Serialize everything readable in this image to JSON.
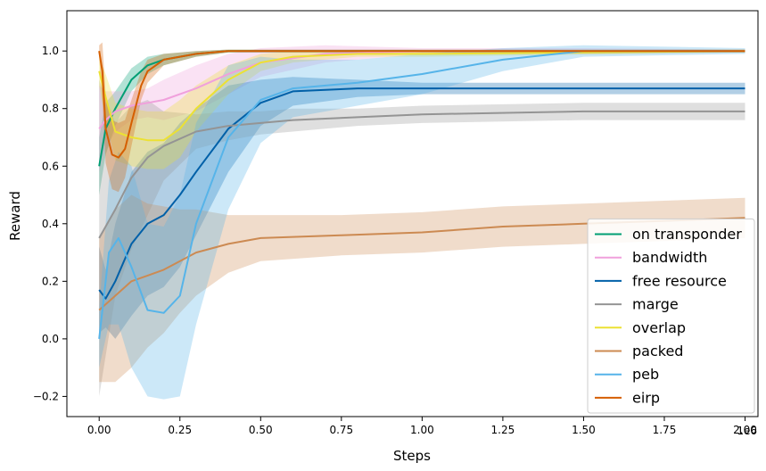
{
  "chart_data": {
    "type": "line",
    "title": "",
    "xlabel": "Steps",
    "ylabel": "Reward",
    "x_offset_label": "1e6",
    "xlim": [
      -0.1,
      2.04
    ],
    "ylim": [
      -0.27,
      1.14
    ],
    "x_ticks": [
      0.0,
      0.25,
      0.5,
      0.75,
      1.0,
      1.25,
      1.5,
      1.75,
      2.0
    ],
    "x_tick_labels": [
      "0.00",
      "0.25",
      "0.50",
      "0.75",
      "1.00",
      "1.25",
      "1.50",
      "1.75",
      "2.00"
    ],
    "y_ticks": [
      -0.2,
      0.0,
      0.2,
      0.4,
      0.6,
      0.8,
      1.0
    ],
    "y_tick_labels": [
      "−0.2",
      "0.0",
      "0.2",
      "0.4",
      "0.6",
      "0.8",
      "1.0"
    ],
    "grid": false,
    "legend_position": "lower-right",
    "series": [
      {
        "name": "on transponder",
        "color": "#009E73",
        "x": [
          0,
          0.02,
          0.05,
          0.1,
          0.15,
          0.2,
          0.3,
          0.4,
          0.6,
          1.0,
          2.0
        ],
        "y": [
          0.6,
          0.73,
          0.8,
          0.9,
          0.95,
          0.97,
          0.99,
          1.0,
          1.0,
          1.0,
          1.0
        ],
        "band": [
          0.1,
          0.09,
          0.06,
          0.04,
          0.03,
          0.02,
          0.01,
          0.005,
          0.005,
          0.005,
          0.005
        ]
      },
      {
        "name": "bandwidth",
        "color": "#F0A0DC",
        "x": [
          0,
          0.02,
          0.05,
          0.1,
          0.15,
          0.2,
          0.3,
          0.4,
          0.5,
          0.7,
          1.0,
          1.5,
          2.0
        ],
        "y": [
          0.73,
          0.76,
          0.79,
          0.81,
          0.82,
          0.83,
          0.87,
          0.92,
          0.96,
          0.99,
          1.0,
          1.0,
          1.0
        ],
        "band": [
          0.15,
          0.1,
          0.07,
          0.05,
          0.05,
          0.07,
          0.08,
          0.07,
          0.05,
          0.03,
          0.01,
          0.01,
          0.005
        ]
      },
      {
        "name": "free resource",
        "color": "#0060A8",
        "x": [
          0,
          0.02,
          0.05,
          0.1,
          0.15,
          0.2,
          0.25,
          0.3,
          0.4,
          0.5,
          0.6,
          0.8,
          1.0,
          1.5,
          2.0
        ],
        "y": [
          0.17,
          0.14,
          0.2,
          0.33,
          0.4,
          0.43,
          0.5,
          0.58,
          0.73,
          0.82,
          0.86,
          0.87,
          0.87,
          0.87,
          0.87
        ],
        "band": [
          0.15,
          0.1,
          0.2,
          0.25,
          0.25,
          0.25,
          0.25,
          0.22,
          0.15,
          0.08,
          0.05,
          0.03,
          0.02,
          0.02,
          0.02
        ]
      },
      {
        "name": "marge",
        "color": "#949494",
        "x": [
          0,
          0.05,
          0.1,
          0.15,
          0.2,
          0.3,
          0.4,
          0.5,
          0.6,
          0.8,
          1.0,
          1.5,
          2.0
        ],
        "y": [
          0.35,
          0.45,
          0.56,
          0.63,
          0.67,
          0.72,
          0.74,
          0.75,
          0.76,
          0.77,
          0.78,
          0.79,
          0.79
        ],
        "band": [
          0.55,
          0.3,
          0.25,
          0.2,
          0.12,
          0.06,
          0.05,
          0.04,
          0.04,
          0.03,
          0.03,
          0.03,
          0.03
        ]
      },
      {
        "name": "overlap",
        "color": "#ECE133",
        "x": [
          0,
          0.02,
          0.05,
          0.1,
          0.15,
          0.2,
          0.25,
          0.3,
          0.4,
          0.5,
          0.6,
          0.8,
          1.0,
          2.0
        ],
        "y": [
          0.93,
          0.84,
          0.72,
          0.7,
          0.69,
          0.69,
          0.73,
          0.8,
          0.9,
          0.96,
          0.98,
          0.99,
          0.99,
          1.0
        ],
        "band": [
          0.05,
          0.08,
          0.1,
          0.1,
          0.1,
          0.1,
          0.1,
          0.08,
          0.05,
          0.03,
          0.02,
          0.01,
          0.01,
          0.005
        ]
      },
      {
        "name": "packed",
        "color": "#CC8A52",
        "x": [
          0,
          0.05,
          0.1,
          0.15,
          0.2,
          0.25,
          0.3,
          0.4,
          0.5,
          0.75,
          1.0,
          1.25,
          1.5,
          1.75,
          2.0
        ],
        "y": [
          0.1,
          0.15,
          0.2,
          0.22,
          0.24,
          0.27,
          0.3,
          0.33,
          0.35,
          0.36,
          0.37,
          0.39,
          0.4,
          0.41,
          0.42
        ],
        "band": [
          0.25,
          0.3,
          0.3,
          0.25,
          0.22,
          0.18,
          0.15,
          0.1,
          0.08,
          0.07,
          0.07,
          0.07,
          0.07,
          0.07,
          0.07
        ]
      },
      {
        "name": "peb",
        "color": "#56B4E9",
        "x": [
          0,
          0.03,
          0.06,
          0.1,
          0.15,
          0.2,
          0.25,
          0.3,
          0.4,
          0.5,
          0.6,
          0.8,
          1.0,
          1.25,
          1.5,
          2.0
        ],
        "y": [
          0.0,
          0.3,
          0.35,
          0.25,
          0.1,
          0.09,
          0.15,
          0.4,
          0.7,
          0.83,
          0.87,
          0.89,
          0.92,
          0.97,
          1.0,
          1.0
        ],
        "band": [
          0.1,
          0.25,
          0.3,
          0.35,
          0.3,
          0.3,
          0.35,
          0.35,
          0.25,
          0.15,
          0.1,
          0.08,
          0.07,
          0.04,
          0.02,
          0.01
        ]
      },
      {
        "name": "eirp",
        "color": "#D55E00",
        "x": [
          0,
          0.01,
          0.02,
          0.04,
          0.06,
          0.08,
          0.1,
          0.13,
          0.15,
          0.2,
          0.3,
          0.4,
          0.6,
          1.0,
          2.0
        ],
        "y": [
          1.0,
          0.93,
          0.73,
          0.64,
          0.63,
          0.66,
          0.75,
          0.88,
          0.93,
          0.97,
          0.99,
          1.0,
          1.0,
          1.0,
          1.0
        ],
        "band": [
          0.02,
          0.1,
          0.12,
          0.12,
          0.12,
          0.1,
          0.08,
          0.05,
          0.04,
          0.02,
          0.01,
          0.005,
          0.005,
          0.005,
          0.005
        ]
      }
    ]
  }
}
